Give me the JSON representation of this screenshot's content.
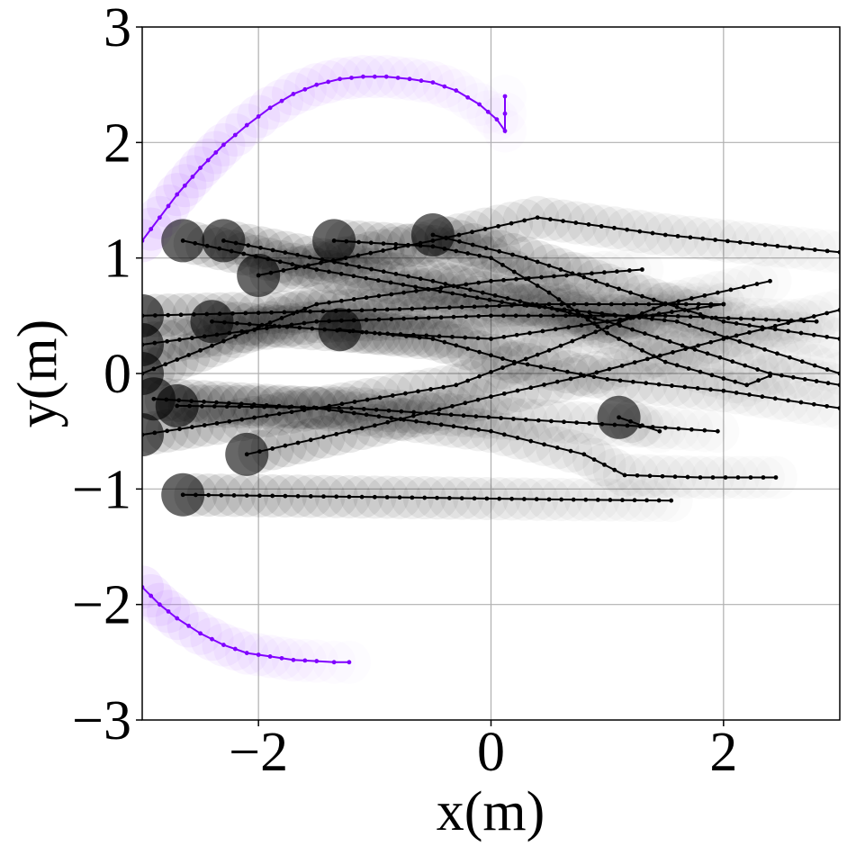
{
  "chart_data": {
    "type": "scatter",
    "title": "",
    "xlabel": "x(m)",
    "ylabel": "y(m)",
    "xlim": [
      -3,
      3
    ],
    "ylim": [
      -3,
      3
    ],
    "xticks": [
      -2,
      0,
      2
    ],
    "yticks": [
      -3,
      -2,
      -1,
      0,
      1,
      2,
      3
    ],
    "xtick_labels": [
      "−2",
      "0",
      "2"
    ],
    "ytick_labels": [
      "−3",
      "−2",
      "−1",
      "0",
      "1",
      "2",
      "3"
    ],
    "grid": true,
    "legend": "none",
    "colors": {
      "agent": "#8000ff",
      "agent_halo": "#b266ff",
      "pedestrian": "#000000"
    },
    "series": [
      {
        "group": "agent",
        "points": [
          [
            -3.0,
            1.15
          ],
          [
            -2.85,
            1.35
          ],
          [
            -2.7,
            1.55
          ],
          [
            -2.5,
            1.78
          ],
          [
            -2.3,
            1.98
          ],
          [
            -2.1,
            2.15
          ],
          [
            -1.9,
            2.3
          ],
          [
            -1.7,
            2.42
          ],
          [
            -1.5,
            2.5
          ],
          [
            -1.3,
            2.55
          ],
          [
            -1.1,
            2.57
          ],
          [
            -0.9,
            2.57
          ],
          [
            -0.7,
            2.55
          ],
          [
            -0.5,
            2.52
          ],
          [
            -0.3,
            2.45
          ],
          [
            -0.1,
            2.33
          ],
          [
            0.05,
            2.2
          ],
          [
            0.12,
            2.1
          ],
          [
            0.12,
            2.25
          ],
          [
            0.12,
            2.4
          ]
        ]
      },
      {
        "group": "agent",
        "points": [
          [
            -3.0,
            -1.85
          ],
          [
            -2.85,
            -2.0
          ],
          [
            -2.7,
            -2.12
          ],
          [
            -2.5,
            -2.25
          ],
          [
            -2.3,
            -2.35
          ],
          [
            -2.1,
            -2.42
          ],
          [
            -1.9,
            -2.45
          ],
          [
            -1.7,
            -2.48
          ],
          [
            -1.5,
            -2.49
          ],
          [
            -1.35,
            -2.5
          ],
          [
            -1.22,
            -2.5
          ]
        ]
      },
      {
        "group": "pedestrian",
        "points": [
          [
            -2.65,
            1.15
          ],
          [
            -1.5,
            0.9
          ],
          [
            0.2,
            0.6
          ],
          [
            1.6,
            0.45
          ],
          [
            3.0,
            0.0
          ]
        ]
      },
      {
        "group": "pedestrian",
        "points": [
          [
            -2.65,
            -1.05
          ],
          [
            -1.0,
            -1.07
          ],
          [
            0.5,
            -1.09
          ],
          [
            1.55,
            -1.1
          ]
        ]
      },
      {
        "group": "pedestrian",
        "points": [
          [
            -2.3,
            1.15
          ],
          [
            -0.5,
            0.8
          ],
          [
            1.0,
            0.45
          ],
          [
            2.4,
            0.0
          ],
          [
            3.0,
            -0.1
          ]
        ]
      },
      {
        "group": "pedestrian",
        "points": [
          [
            -3.0,
            0.0
          ],
          [
            -1.5,
            0.6
          ],
          [
            0.0,
            0.8
          ],
          [
            1.3,
            0.9
          ]
        ]
      },
      {
        "group": "pedestrian",
        "points": [
          [
            -3.0,
            0.5
          ],
          [
            -1.0,
            0.55
          ],
          [
            0.5,
            0.6
          ],
          [
            2.0,
            0.6
          ]
        ]
      },
      {
        "group": "pedestrian",
        "points": [
          [
            -3.0,
            0.25
          ],
          [
            -1.5,
            0.45
          ],
          [
            0.0,
            0.5
          ],
          [
            1.5,
            0.5
          ],
          [
            2.8,
            0.45
          ]
        ]
      },
      {
        "group": "pedestrian",
        "points": [
          [
            -1.35,
            1.15
          ],
          [
            -0.5,
            1.1
          ],
          [
            0.0,
            1.0
          ],
          [
            0.5,
            0.7
          ],
          [
            1.0,
            0.35
          ],
          [
            1.5,
            0.1
          ],
          [
            2.2,
            -0.1
          ],
          [
            2.4,
            -0.02
          ]
        ]
      },
      {
        "group": "pedestrian",
        "points": [
          [
            -2.0,
            0.85
          ],
          [
            -0.5,
            1.15
          ],
          [
            0.4,
            1.35
          ],
          [
            1.5,
            1.2
          ],
          [
            3.0,
            1.05
          ]
        ]
      },
      {
        "group": "pedestrian",
        "points": [
          [
            -1.3,
            0.38
          ],
          [
            -0.5,
            0.3
          ],
          [
            0.2,
            0.1
          ],
          [
            1.0,
            -0.05
          ],
          [
            2.0,
            -0.15
          ],
          [
            3.0,
            -0.3
          ]
        ]
      },
      {
        "group": "pedestrian",
        "points": [
          [
            -2.1,
            -0.7
          ],
          [
            -1.0,
            -0.45
          ],
          [
            0.0,
            -0.2
          ],
          [
            0.8,
            -0.02
          ],
          [
            2.0,
            0.3
          ],
          [
            3.0,
            0.55
          ]
        ]
      },
      {
        "group": "pedestrian",
        "points": [
          [
            -3.0,
            -0.53
          ],
          [
            -1.5,
            -0.3
          ],
          [
            -0.3,
            -0.1
          ],
          [
            0.5,
            0.2
          ],
          [
            1.5,
            0.6
          ],
          [
            2.4,
            0.8
          ]
        ]
      },
      {
        "group": "pedestrian",
        "points": [
          [
            -2.9,
            -0.22
          ],
          [
            -1.5,
            -0.3
          ],
          [
            0.0,
            -0.5
          ],
          [
            0.8,
            -0.7
          ],
          [
            1.15,
            -0.88
          ],
          [
            1.8,
            -0.9
          ],
          [
            2.45,
            -0.9
          ]
        ]
      },
      {
        "group": "pedestrian",
        "points": [
          [
            -2.7,
            -0.28
          ],
          [
            -1.2,
            -0.3
          ],
          [
            0.3,
            -0.4
          ],
          [
            1.5,
            -0.47
          ],
          [
            1.95,
            -0.5
          ]
        ]
      },
      {
        "group": "pedestrian",
        "points": [
          [
            -2.4,
            0.45
          ],
          [
            -1.0,
            0.35
          ],
          [
            0.0,
            0.3
          ],
          [
            1.0,
            0.45
          ],
          [
            2.0,
            0.6
          ]
        ]
      },
      {
        "group": "pedestrian",
        "points": [
          [
            1.1,
            -0.38
          ],
          [
            1.3,
            -0.45
          ],
          [
            1.45,
            -0.5
          ]
        ]
      },
      {
        "group": "pedestrian",
        "points": [
          [
            -0.5,
            1.2
          ],
          [
            0.3,
            1.0
          ],
          [
            1.2,
            0.7
          ],
          [
            2.0,
            0.45
          ],
          [
            3.0,
            0.3
          ]
        ]
      }
    ]
  }
}
